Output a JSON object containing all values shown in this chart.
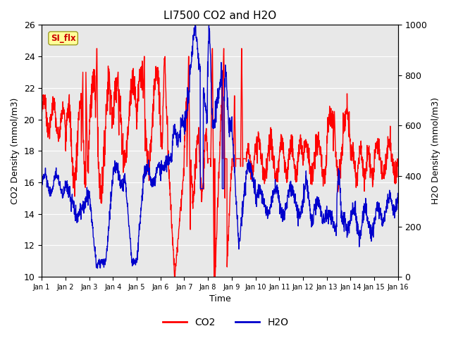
{
  "title": "LI7500 CO2 and H2O",
  "xlabel": "Time",
  "ylabel_left": "CO2 Density (mmol/m3)",
  "ylabel_right": "H2O Density (mmol/m3)",
  "ylim_left": [
    10,
    26
  ],
  "ylim_right": [
    0,
    1000
  ],
  "co2_color": "#FF0000",
  "h2o_color": "#0000CC",
  "legend_co2": "CO2",
  "legend_h2o": "H2O",
  "watermark_text": "SI_flx",
  "watermark_bg": "#FFFF99",
  "watermark_fg": "#CC0000",
  "bg_color": "#E8E8E8",
  "line_width": 1.0,
  "n_points": 2000,
  "xtick_labels": [
    "Jan 1",
    "Jan 2",
    "Jan 3",
    "Jan 4",
    "Jan 5",
    "Jan 6",
    "Jan 7",
    "Jan 8",
    "Jan 9",
    "Jan 10",
    "Jan 11",
    "Jan 12",
    "Jan 13",
    "Jan 14",
    "Jan 15",
    "Jan 16"
  ],
  "xtick_positions": [
    0,
    1,
    2,
    3,
    4,
    5,
    6,
    7,
    8,
    9,
    10,
    11,
    12,
    13,
    14,
    15
  ]
}
